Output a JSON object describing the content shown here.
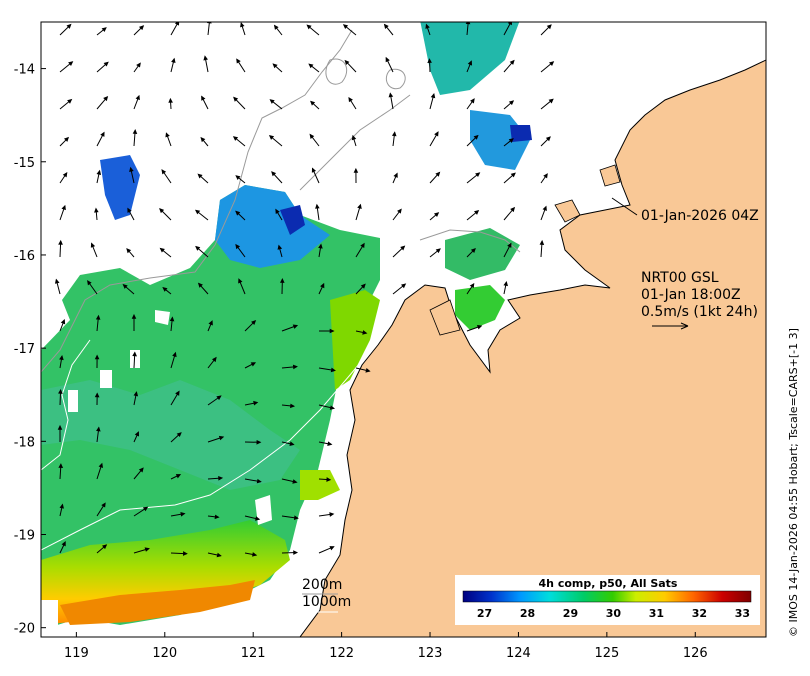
{
  "map": {
    "lon_ticks": [
      "119",
      "120",
      "121",
      "122",
      "123",
      "124",
      "125",
      "126"
    ],
    "lat_ticks": [
      "-14",
      "-15",
      "-16",
      "-17",
      "-18",
      "-19",
      "-20"
    ],
    "lon_range": [
      118.6,
      126.8
    ],
    "lat_range": [
      -20.1,
      -13.5
    ],
    "colors": {
      "land": "#f9c896",
      "coast": "#000000",
      "bathymetry_200m": "#9a9a9a",
      "bathymetry_1000m": "#ffffff",
      "arrow": "#000000"
    }
  },
  "annotations": {
    "time_label": "01-Jan-2026 04Z",
    "current_product": "NRT00 GSL",
    "current_time": "01-Jan 18:00Z",
    "scale_text": "0.5m/s (1kt 24h)"
  },
  "legend": {
    "contour_200": "200m",
    "contour_1000": "1000m"
  },
  "colorbar": {
    "title": "4h comp, p50, All Sats",
    "ticks": [
      "27",
      "28",
      "29",
      "30",
      "31",
      "32",
      "33"
    ],
    "range": [
      26.5,
      33.2
    ],
    "stops": [
      "#00007f",
      "#0033cc",
      "#0099ff",
      "#00dddd",
      "#00cc66",
      "#33cc00",
      "#ccee00",
      "#ffcc00",
      "#ff6600",
      "#cc0000",
      "#7f0000"
    ]
  },
  "credit": "© IMOS 14-Jan-2026 04:55 Hobart; Tscale=CARS+[-1 3]"
}
